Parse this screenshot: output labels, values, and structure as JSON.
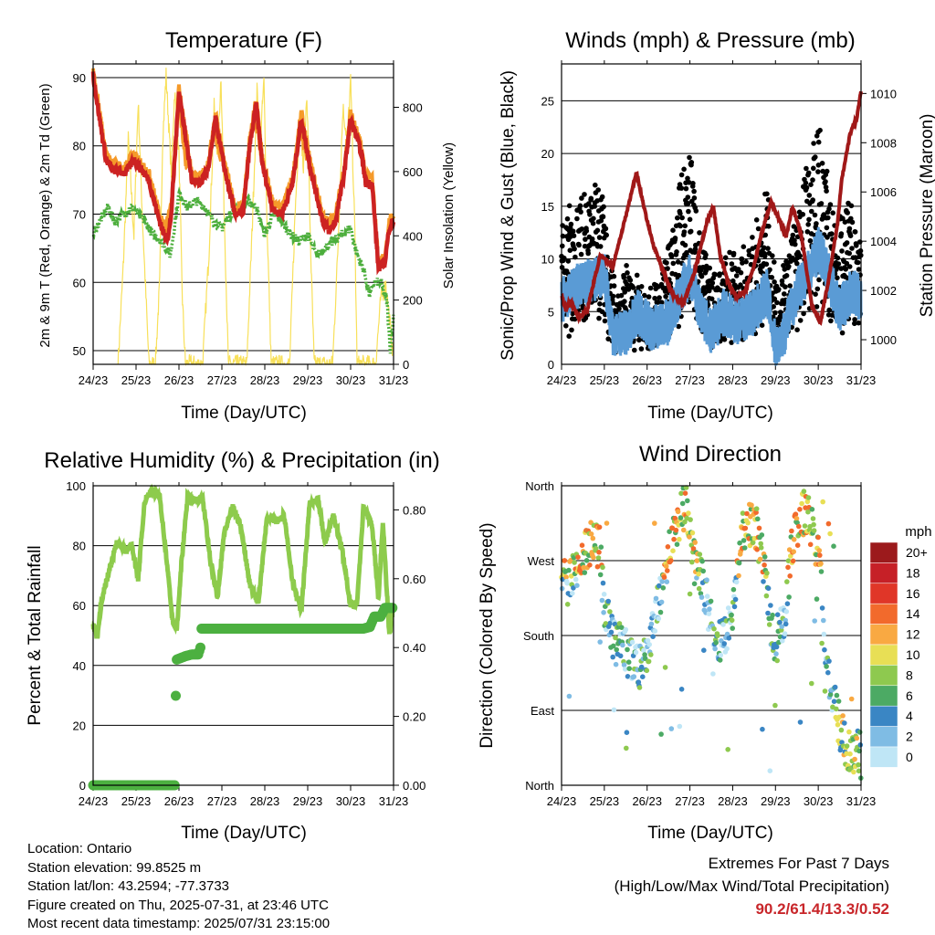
{
  "x_ticks": [
    "24/23",
    "25/23",
    "26/23",
    "27/23",
    "28/23",
    "29/23",
    "30/23",
    "31/23"
  ],
  "x_label": "Time (Day/UTC)",
  "colors": {
    "temp_2m": "#cc2222",
    "temp_9m": "#f59a2a",
    "dewpoint": "#4cae3c",
    "insolation": "#f8e05a",
    "wind": "#5a9bd5",
    "gust": "#000000",
    "pressure": "#a01818",
    "rh": "#8dcb4c",
    "precip": "#4cb040"
  },
  "chart_data": [
    {
      "type": "line",
      "title": "Temperature (F)",
      "ylabel": "2m & 9m T (Red, Orange) & 2m Td (Green)",
      "ylabel_right": "Solar Insolation (Yellow)",
      "ylim": [
        48,
        92
      ],
      "yticks": [
        "50",
        "60",
        "70",
        "80",
        "90"
      ],
      "ylim_right": [
        0,
        935
      ],
      "yticks_right": [
        "0",
        "200",
        "400",
        "600",
        "800"
      ],
      "xlim": [
        0,
        7
      ],
      "series": [
        {
          "id": "temp_2m",
          "x": [
            0,
            0.1,
            0.3,
            0.45,
            0.75,
            0.95,
            1.3,
            1.5,
            1.65,
            1.75,
            1.82,
            2.0,
            2.3,
            2.5,
            2.7,
            2.85,
            3.05,
            3.3,
            3.5,
            3.65,
            3.8,
            3.95,
            4.2,
            4.4,
            4.65,
            4.85,
            5.05,
            5.35,
            5.5,
            5.65,
            5.85,
            6.0,
            6.25,
            6.35,
            6.5,
            6.65,
            6.8,
            6.9,
            7.0
          ],
          "values": [
            90.5,
            86,
            78,
            76.5,
            76,
            78,
            75,
            70,
            67,
            66.5,
            70,
            88,
            75,
            74.5,
            77,
            84,
            77,
            70,
            70.5,
            80,
            86,
            77,
            70.5,
            70,
            74.5,
            84,
            77,
            69,
            67.5,
            69,
            76,
            84,
            79,
            74.5,
            74.5,
            62,
            63,
            68,
            69
          ]
        },
        {
          "id": "temp_9m",
          "x": [
            1.65,
            1.82,
            2.0,
            2.2,
            2.85,
            3.0,
            3.8,
            3.95,
            4.85,
            5.05,
            5.5,
            5.65
          ],
          "values": [
            67.5,
            71,
            87,
            76,
            82,
            78,
            84,
            78,
            82,
            77,
            68.5,
            70
          ]
        },
        {
          "id": "dewpoint",
          "x": [
            0,
            0.15,
            0.35,
            0.5,
            0.7,
            0.9,
            1.2,
            1.4,
            1.6,
            1.8,
            2.0,
            2.2,
            2.4,
            2.6,
            2.8,
            3.0,
            3.2,
            3.4,
            3.6,
            3.8,
            4.0,
            4.2,
            4.4,
            4.6,
            4.8,
            5.0,
            5.2,
            5.4,
            5.6,
            5.8,
            6.0,
            6.15,
            6.3,
            6.45,
            6.55,
            6.7,
            6.85,
            6.92,
            7.0
          ],
          "values": [
            67,
            69,
            71,
            69,
            70,
            71,
            69,
            67,
            66,
            64,
            73,
            71,
            72,
            71,
            69,
            68,
            70,
            71,
            72,
            71,
            67,
            70,
            69,
            67,
            66,
            67,
            64,
            65,
            66,
            67,
            68,
            64,
            62,
            58,
            60,
            60,
            57,
            50,
            55
          ]
        },
        {
          "id": "insolation",
          "x": [
            0.58,
            0.7,
            0.82,
            0.95,
            1.05,
            1.15,
            1.3,
            1.45,
            1.55,
            1.62,
            1.7,
            1.82,
            1.9,
            2.0,
            2.08,
            2.15,
            2.55,
            2.7,
            2.82,
            2.9,
            2.98,
            3.05,
            3.15,
            3.58,
            3.7,
            3.82,
            3.9,
            3.98,
            4.05,
            4.15,
            4.58,
            4.7,
            4.82,
            4.9,
            4.98,
            5.08,
            5.15,
            5.58,
            5.7,
            5.82,
            5.92,
            6.0,
            6.1,
            6.15,
            6.58,
            6.7,
            6.82,
            6.9,
            6.98
          ],
          "values": [
            0,
            300,
            700,
            400,
            820,
            450,
            0,
            0,
            250,
            700,
            900,
            600,
            850,
            650,
            200,
            0,
            0,
            350,
            800,
            650,
            900,
            500,
            0,
            0,
            400,
            850,
            700,
            880,
            450,
            0,
            0,
            450,
            800,
            600,
            850,
            300,
            0,
            0,
            350,
            800,
            700,
            880,
            400,
            0,
            0,
            200,
            250,
            150,
            40
          ],
          "axis": "right"
        }
      ]
    },
    {
      "type": "scatter",
      "title": "Winds (mph) & Pressure (mb)",
      "ylabel": "Sonic/Prop Wind & Gust (Blue, Black)",
      "ylabel_right": "Station Pressure (Maroon)",
      "ylim": [
        0,
        28.5
      ],
      "yticks": [
        "0",
        "5",
        "10",
        "15",
        "20",
        "25"
      ],
      "ylim_right": [
        999.0,
        1011.2
      ],
      "yticks_right": [
        "1000",
        "1002",
        "1004",
        "1006",
        "1008",
        "1010"
      ],
      "xlim": [
        0,
        7
      ],
      "wind_mean": {
        "x": [
          0,
          0.4,
          0.8,
          1.0,
          1.2,
          1.5,
          1.8,
          2.1,
          2.5,
          2.8,
          3.0,
          3.3,
          3.5,
          3.8,
          4.1,
          4.5,
          4.8,
          5.0,
          5.2,
          5.5,
          5.8,
          6.0,
          6.2,
          6.5,
          6.8,
          7.0
        ],
        "values": [
          6,
          7.5,
          8,
          8.5,
          2.5,
          3,
          5,
          3.5,
          4,
          7,
          8.5,
          4.5,
          3,
          5,
          4,
          5,
          7,
          1.5,
          3,
          7,
          9,
          11,
          9,
          5,
          7,
          6
        ]
      },
      "gust_peak": {
        "x": [
          0,
          0.3,
          0.6,
          0.9,
          1.1,
          1.3,
          1.6,
          2.0,
          2.4,
          2.8,
          3.0,
          3.2,
          3.6,
          4.0,
          4.4,
          4.8,
          5.0,
          5.2,
          5.5,
          5.8,
          6.0,
          6.2,
          6.4,
          6.7,
          7.0
        ],
        "values": [
          13,
          15,
          16,
          18,
          10,
          7,
          9,
          6,
          9,
          18,
          22,
          12,
          9,
          10,
          11,
          17,
          8,
          9,
          15,
          19,
          24,
          18,
          13,
          16,
          12
        ]
      },
      "pressure": {
        "x": [
          0,
          0.1,
          0.2,
          0.4,
          0.6,
          0.9,
          1.2,
          1.5,
          1.75,
          1.95,
          2.15,
          2.4,
          2.6,
          2.85,
          3.1,
          3.4,
          3.55,
          3.7,
          3.9,
          4.1,
          4.3,
          4.5,
          4.7,
          4.9,
          5.05,
          5.25,
          5.4,
          5.6,
          5.85,
          6.05,
          6.25,
          6.45,
          6.55,
          6.75,
          6.9,
          7.0
        ],
        "values": [
          1001.8,
          1001.2,
          1001.6,
          1000.9,
          1001.2,
          1003.4,
          1003.0,
          1005.0,
          1006.8,
          1005.2,
          1003.8,
          1002.7,
          1001.8,
          1001.5,
          1002.7,
          1004.8,
          1005.4,
          1003.5,
          1002.3,
          1001.7,
          1002.0,
          1003.0,
          1004.5,
          1005.6,
          1005.0,
          1004.2,
          1005.4,
          1004.3,
          1001.4,
          1000.7,
          1002.5,
          1004.7,
          1006.5,
          1008.4,
          1009.0,
          1010.1
        ]
      }
    },
    {
      "type": "line",
      "title": "Relative Humidity (%) & Precipitation (in)",
      "ylabel": "Percent & Total Rainfall",
      "ylim": [
        0,
        100
      ],
      "yticks": [
        "0",
        "20",
        "40",
        "60",
        "80",
        "100"
      ],
      "ylim_right": [
        0,
        0.87
      ],
      "yticks_right": [
        "0.00",
        "0.20",
        "0.40",
        "0.60",
        "0.80"
      ],
      "xlim": [
        0,
        7
      ],
      "series": [
        {
          "id": "rh",
          "x": [
            0,
            0.1,
            0.2,
            0.4,
            0.55,
            0.75,
            0.9,
            1.05,
            1.2,
            1.35,
            1.55,
            1.75,
            1.85,
            1.95,
            2.05,
            2.2,
            2.35,
            2.55,
            2.75,
            2.9,
            3.05,
            3.25,
            3.45,
            3.65,
            3.85,
            4.05,
            4.25,
            4.45,
            4.65,
            4.85,
            5.05,
            5.25,
            5.4,
            5.6,
            5.8,
            6.0,
            6.15,
            6.3,
            6.5,
            6.65,
            6.75,
            6.9,
            7.0
          ],
          "values": [
            53,
            49,
            62,
            73,
            81,
            78,
            80,
            69,
            95,
            98,
            97,
            70,
            55,
            52,
            73,
            96,
            95,
            96,
            73,
            63,
            84,
            93,
            86,
            67,
            61,
            90,
            88,
            90,
            68,
            58,
            95,
            95,
            81,
            90,
            79,
            60,
            61,
            93,
            87,
            62,
            88,
            51,
            60
          ]
        },
        {
          "id": "precip",
          "axis": "right",
          "x": [
            0,
            0.4,
            0.8,
            1.2,
            1.5,
            1.8,
            1.9,
            1.92,
            1.93,
            1.95,
            2.05,
            2.15,
            2.3,
            2.45,
            2.5,
            2.52,
            2.6,
            3.0,
            3.5,
            4.0,
            4.5,
            5.0,
            5.5,
            6.0,
            6.3,
            6.45,
            6.55,
            6.7,
            6.8,
            6.9,
            7.0
          ],
          "values": [
            0,
            0,
            0,
            0,
            0,
            0,
            0,
            0.16,
            0.36,
            0.365,
            0.37,
            0.375,
            0.38,
            0.38,
            0.4,
            0.455,
            0.455,
            0.455,
            0.455,
            0.455,
            0.455,
            0.455,
            0.455,
            0.455,
            0.455,
            0.46,
            0.49,
            0.49,
            0.515,
            0.515,
            0.515
          ]
        }
      ]
    },
    {
      "type": "scatter",
      "title": "Wind Direction",
      "ylabel": "Direction (Colored By Speed)",
      "ylim": [
        0,
        360
      ],
      "yticks": [
        "North",
        "East",
        "South",
        "West",
        "North"
      ],
      "xlim": [
        0,
        7
      ],
      "direction_track": {
        "x": [
          0,
          0.2,
          0.5,
          0.7,
          0.9,
          1.0,
          1.2,
          1.5,
          1.8,
          2.0,
          2.2,
          2.4,
          2.6,
          2.9,
          3.1,
          3.4,
          3.6,
          3.8,
          4.0,
          4.2,
          4.5,
          4.7,
          4.9,
          5.0,
          5.2,
          5.4,
          5.6,
          5.8,
          6.0,
          6.2,
          6.5,
          6.7,
          7.0
        ],
        "values": [
          245,
          245,
          275,
          295,
          285,
          210,
          175,
          160,
          140,
          155,
          200,
          260,
          300,
          340,
          270,
          225,
          160,
          180,
          210,
          300,
          320,
          275,
          190,
          170,
          200,
          290,
          330,
          320,
          280,
          150,
          70,
          40,
          40
        ]
      },
      "legend_title": "mph",
      "legend_labels": [
        "20+",
        "18",
        "16",
        "14",
        "12",
        "10",
        "8",
        "6",
        "4",
        "2",
        "0"
      ],
      "legend_colors": [
        "#9c1a1c",
        "#c62027",
        "#e03628",
        "#f26a2c",
        "#f9a942",
        "#e8df55",
        "#8ec94f",
        "#4caa64",
        "#3a86c4",
        "#7fbce4",
        "#bfe6f6"
      ]
    }
  ],
  "footer": {
    "location": "Location: Ontario",
    "elevation": "Station elevation: 99.8525 m",
    "latlon": "Station lat/lon: 43.2594; -77.3733",
    "created": "Figure created on Thu, 2025-07-31, at 23:46 UTC",
    "timestamp": "Most recent data timestamp: 2025/07/31 23:15:00"
  },
  "extremes": {
    "title": "Extremes For Past 7 Days",
    "subtitle": "(High/Low/Max Wind/Total Precipitation)",
    "values": "90.2/61.4/13.3/0.52"
  }
}
